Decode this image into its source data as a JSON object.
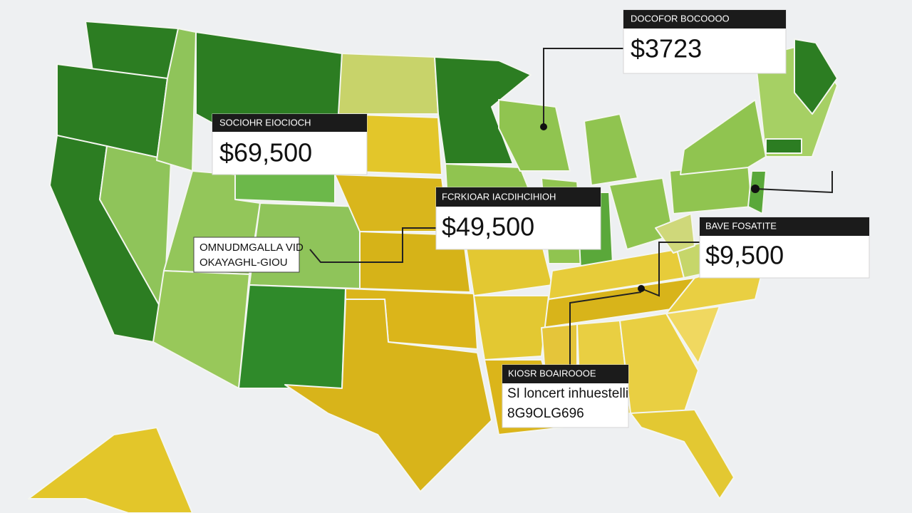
{
  "callouts": [
    {
      "header": "DOCOFOR BOCOOOO",
      "value": "$3723"
    },
    {
      "header": "SOCIOHR EIOCIOCH",
      "value": "$69,500"
    },
    {
      "header": "FCRKIOAR IACDIHCIHIOH",
      "value": "$49,500"
    },
    {
      "lines": [
        "OMNUDMGALLA VID",
        "OKAYAGHL-GIOU"
      ]
    },
    {
      "header": "BAVE FOSATITE",
      "value": "$9,500"
    },
    {
      "header": "KIOSR BOAIROOOE",
      "lines": [
        "SI loncert inhuestelli",
        "8G9OLG696"
      ]
    }
  ]
}
